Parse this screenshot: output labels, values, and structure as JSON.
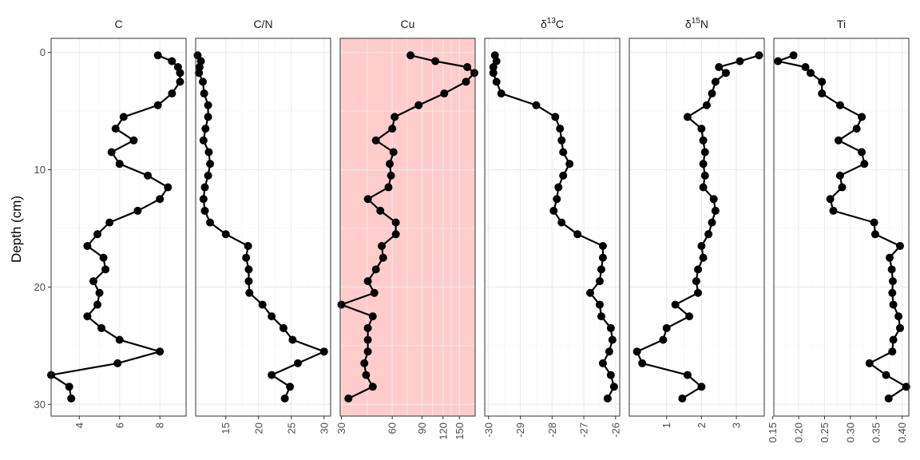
{
  "chart_data": {
    "type": "line",
    "ylabel": "Depth (cm)",
    "ylim": [
      31,
      -1.2
    ],
    "yticks": [
      0,
      10,
      20,
      30
    ],
    "layout": "facets in one row, shared depth axis, independent x axes",
    "grid": true,
    "highlight_panel": {
      "name": "Cu",
      "color": "#ffcccc"
    },
    "depth": [
      0.25,
      0.75,
      1.25,
      1.75,
      2.5,
      3.5,
      4.5,
      5.5,
      6.5,
      7.5,
      8.5,
      9.5,
      10.5,
      11.5,
      12.5,
      13.5,
      14.5,
      15.5,
      16.5,
      17.5,
      18.5,
      19.5,
      20.5,
      21.5,
      22.5,
      23.5,
      24.5,
      25.5,
      26.5,
      27.5,
      28.5,
      29.5
    ],
    "panels": [
      {
        "name": "C",
        "xlim": [
          2.6,
          9.3
        ],
        "xticks": [
          4,
          6,
          8
        ],
        "xtick_labels": [
          "4",
          "6",
          "8"
        ],
        "values": [
          7.9,
          8.6,
          8.9,
          9.0,
          9.0,
          8.6,
          7.9,
          6.2,
          5.8,
          6.7,
          5.6,
          6.0,
          7.4,
          8.4,
          8.0,
          6.9,
          5.5,
          4.9,
          4.4,
          5.2,
          5.3,
          4.7,
          5.0,
          4.9,
          4.4,
          5.1,
          6.0,
          8.0,
          5.9,
          2.6,
          3.5,
          3.6
        ]
      },
      {
        "name": "C/N",
        "xlim": [
          10.4,
          31.0
        ],
        "xticks": [
          15,
          20,
          25,
          30
        ],
        "xtick_labels": [
          "15",
          "20",
          "25",
          "30"
        ],
        "values": [
          10.7,
          11.2,
          11.0,
          10.9,
          11.5,
          11.7,
          12.3,
          12.3,
          11.9,
          11.6,
          12.4,
          12.6,
          12.3,
          11.8,
          11.6,
          11.8,
          12.6,
          15.0,
          18.4,
          18.1,
          18.5,
          18.5,
          18.6,
          20.6,
          22.0,
          23.8,
          25.2,
          30.0,
          26.0,
          22.0,
          24.8,
          24.0
        ]
      },
      {
        "name": "Cu",
        "xscale": "log",
        "xlim": [
          29.5,
          186
        ],
        "xticks": [
          30,
          60,
          90,
          120,
          150
        ],
        "xtick_labels": [
          "30",
          "60",
          "90",
          "120",
          "150"
        ],
        "values": [
          77,
          108,
          167,
          184,
          164,
          122,
          86,
          62,
          60,
          48,
          61,
          58,
          59,
          57,
          43,
          51,
          63,
          63,
          52,
          53,
          48,
          43,
          47,
          30,
          46,
          43,
          43,
          43,
          41,
          42,
          46,
          33
        ]
      },
      {
        "name": "δ13C",
        "label_parts": [
          "δ",
          "13",
          "C"
        ],
        "xlim": [
          -30.12,
          -25.87
        ],
        "xticks": [
          -30,
          -29,
          -28,
          -27,
          -26
        ],
        "xtick_labels": [
          "-30",
          "-29",
          "-28",
          "-27",
          "-26"
        ],
        "values": [
          -29.8,
          -29.75,
          -29.85,
          -29.85,
          -29.75,
          -29.6,
          -28.5,
          -27.9,
          -27.75,
          -27.7,
          -27.65,
          -27.45,
          -27.65,
          -27.8,
          -27.85,
          -27.95,
          -27.7,
          -27.2,
          -26.4,
          -26.4,
          -26.45,
          -26.5,
          -26.8,
          -26.5,
          -26.45,
          -26.15,
          -26.1,
          -26.2,
          -26.4,
          -26.15,
          -26.05,
          -26.25
        ]
      },
      {
        "name": "δ15N",
        "label_parts": [
          "δ",
          "15",
          "N"
        ],
        "xlim": [
          -0.07,
          3.8
        ],
        "xticks": [
          1,
          2,
          3
        ],
        "xtick_labels": [
          "1",
          "2",
          "3"
        ],
        "values": [
          3.65,
          3.1,
          2.5,
          2.7,
          2.4,
          2.3,
          2.15,
          1.6,
          2.0,
          2.05,
          2.1,
          2.05,
          2.1,
          2.05,
          2.35,
          2.4,
          2.3,
          2.2,
          2.0,
          2.05,
          1.9,
          1.85,
          1.9,
          1.25,
          1.65,
          1.0,
          0.9,
          0.15,
          0.3,
          1.6,
          2.0,
          1.45
        ]
      },
      {
        "name": "Ti",
        "xlim": [
          0.152,
          0.413
        ],
        "xticks": [
          0.15,
          0.2,
          0.25,
          0.3,
          0.35,
          0.4
        ],
        "xtick_labels": [
          "0.15",
          "0.20",
          "0.25",
          "0.30",
          "0.35",
          "0.40"
        ],
        "values": [
          0.19,
          0.16,
          0.213,
          0.223,
          0.245,
          0.245,
          0.28,
          0.322,
          0.312,
          0.277,
          0.322,
          0.327,
          0.28,
          0.284,
          0.261,
          0.267,
          0.346,
          0.348,
          0.396,
          0.376,
          0.38,
          0.382,
          0.381,
          0.383,
          0.393,
          0.396,
          0.383,
          0.381,
          0.337,
          0.369,
          0.408,
          0.374
        ]
      }
    ]
  }
}
